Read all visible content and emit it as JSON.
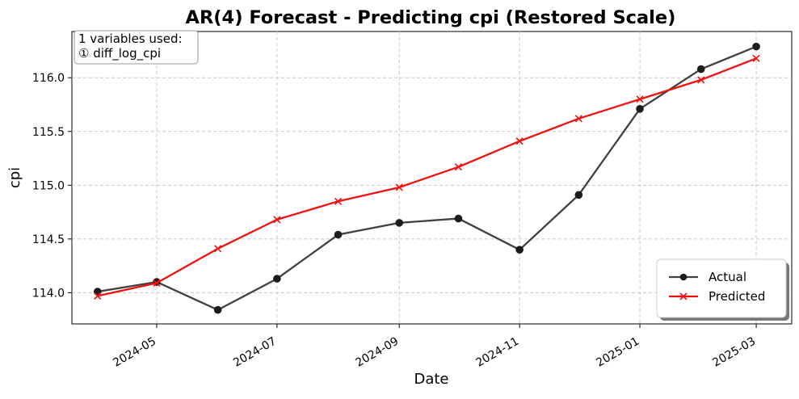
{
  "chart_data": {
    "type": "line",
    "title": "AR(4) Forecast - Predicting cpi (Restored Scale)",
    "xlabel": "Date",
    "ylabel": "cpi",
    "x_ticks": [
      "2024-05",
      "2024-07",
      "2024-09",
      "2024-11",
      "2025-01",
      "2025-03"
    ],
    "y_ticks": [
      "114.0",
      "114.5",
      "115.0",
      "115.5",
      "116.0"
    ],
    "x": [
      "2024-04-01",
      "2024-05-01",
      "2024-06-01",
      "2024-07-01",
      "2024-08-01",
      "2024-09-01",
      "2024-10-01",
      "2024-11-01",
      "2024-12-01",
      "2025-01-01",
      "2025-02-01",
      "2025-03-01"
    ],
    "xlim": [
      "2024-03-19",
      "2025-03-19"
    ],
    "ylim": [
      113.71,
      116.43
    ],
    "grid": true,
    "annotation": [
      "1 variables used:",
      "① diff_log_cpi"
    ],
    "legend_position": "lower-right",
    "series": [
      {
        "name": "Actual",
        "color": "#404040",
        "marker": "circle",
        "values": [
          114.01,
          114.1,
          113.84,
          114.13,
          114.54,
          114.65,
          114.69,
          114.4,
          114.91,
          115.71,
          116.08,
          116.29
        ]
      },
      {
        "name": "Predicted",
        "color": "#ee1111",
        "marker": "x",
        "values": [
          113.97,
          114.09,
          114.41,
          114.68,
          114.85,
          114.98,
          115.17,
          115.41,
          115.62,
          115.8,
          115.98,
          116.18
        ]
      }
    ]
  }
}
